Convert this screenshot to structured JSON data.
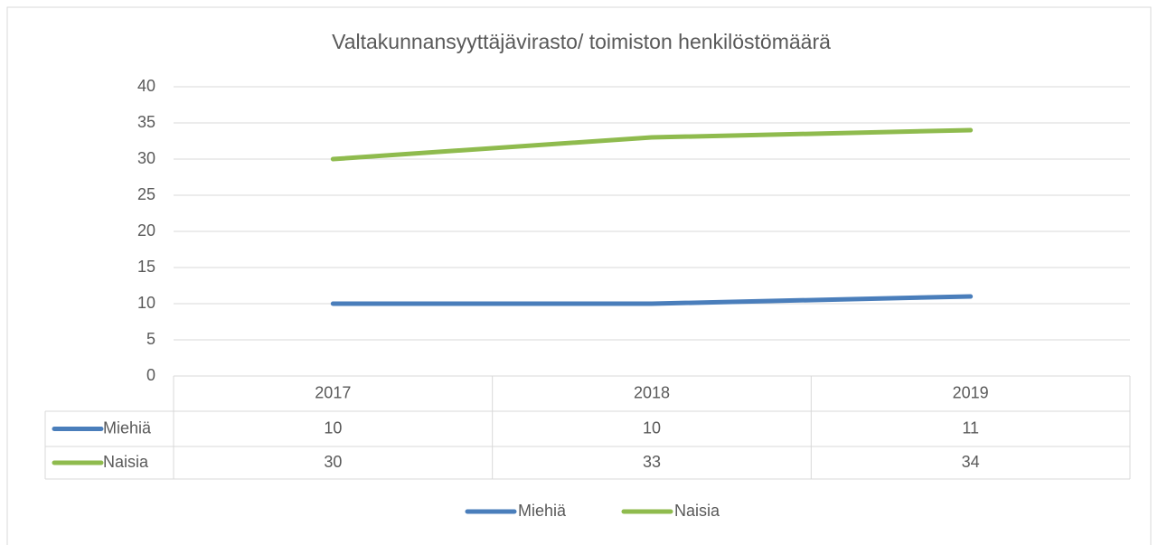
{
  "chart_data": {
    "type": "line",
    "title": "Valtakunnansyyttäjävirasto/ toimiston henkilöstömäärä",
    "categories": [
      "2017",
      "2018",
      "2019"
    ],
    "series": [
      {
        "name": "Miehiä",
        "color": "#4a7ebb",
        "values": [
          10,
          10,
          11
        ]
      },
      {
        "name": "Naisia",
        "color": "#8fbb4e",
        "values": [
          30,
          33,
          34
        ]
      }
    ],
    "ylim": [
      0,
      40
    ],
    "yticks": [
      0,
      5,
      10,
      15,
      20,
      25,
      30,
      35,
      40
    ],
    "grid": true,
    "data_table": true,
    "legend": "bottom"
  }
}
